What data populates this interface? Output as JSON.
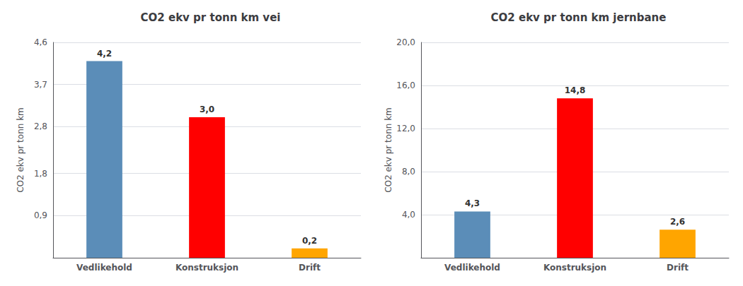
{
  "chart_data": [
    {
      "type": "bar",
      "title": "CO2 ekv pr tonn km vei",
      "categories": [
        "Vedlikehold",
        "Konstruksjon",
        "Drift"
      ],
      "values": [
        4.2,
        3.0,
        0.2
      ],
      "value_labels": [
        "4,2",
        "3,0",
        "0,2"
      ],
      "colors": [
        "#5b8db8",
        "#ff0000",
        "#ffa500"
      ],
      "ylabel": "CO2 ekv pr tonn km",
      "ylim": [
        0,
        4.6
      ],
      "yticks": [
        {
          "value": 0.9,
          "label": "0,9"
        },
        {
          "value": 1.8,
          "label": "1,8"
        },
        {
          "value": 2.8,
          "label": "2,8"
        },
        {
          "value": 3.7,
          "label": "3,7"
        },
        {
          "value": 4.6,
          "label": "4,6"
        }
      ],
      "grid": true,
      "data_labels": true
    },
    {
      "type": "bar",
      "title": "CO2 ekv pr tonn km jernbane",
      "categories": [
        "Vedlikehold",
        "Konstruksjon",
        "Drift"
      ],
      "values": [
        4.3,
        14.8,
        2.6
      ],
      "value_labels": [
        "4,3",
        "14,8",
        "2,6"
      ],
      "colors": [
        "#5b8db8",
        "#ff0000",
        "#ffa500"
      ],
      "ylabel": "CO2 ekv pr tonn km",
      "ylim": [
        0,
        20.0
      ],
      "yticks": [
        {
          "value": 4.0,
          "label": "4,0"
        },
        {
          "value": 8.0,
          "label": "8,0"
        },
        {
          "value": 12.0,
          "label": "12,0"
        },
        {
          "value": 16.0,
          "label": "16,0"
        },
        {
          "value": 20.0,
          "label": "20,0"
        }
      ],
      "grid": true,
      "data_labels": true
    }
  ]
}
